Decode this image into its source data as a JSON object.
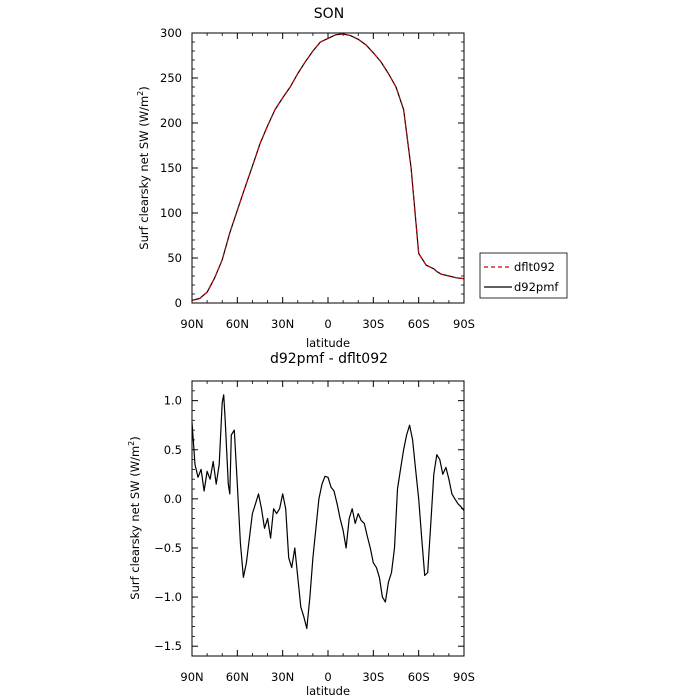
{
  "chart_data": [
    {
      "type": "line",
      "title": "SON",
      "xlabel": "latitude",
      "ylabel": "Surf clearsky net SW (W/m",
      "ylabel_sup": "2",
      "ylabel_tail": ")",
      "xlim": [
        90,
        -90
      ],
      "ylim": [
        0,
        300
      ],
      "xticks": [
        90,
        60,
        30,
        0,
        -30,
        -60,
        -90
      ],
      "xtick_labels": [
        "90N",
        "60N",
        "30N",
        "0",
        "30S",
        "60S",
        "90S"
      ],
      "yticks": [
        0,
        50,
        100,
        150,
        200,
        250,
        300
      ],
      "ytick_labels": [
        "0",
        "50",
        "100",
        "150",
        "200",
        "250",
        "300"
      ],
      "legend": "right",
      "series": [
        {
          "name": "dflt092",
          "color": "#cc0000",
          "dash": "dashed",
          "x": [
            90,
            85,
            80,
            75,
            70,
            65,
            60,
            55,
            50,
            45,
            40,
            35,
            30,
            25,
            20,
            15,
            10,
            5,
            0,
            -5,
            -10,
            -15,
            -20,
            -25,
            -30,
            -35,
            -40,
            -45,
            -50,
            -55,
            -60,
            -65,
            -70,
            -72,
            -75,
            -80,
            -85,
            -90
          ],
          "y": [
            3,
            5,
            12,
            28,
            48,
            78,
            103,
            128,
            152,
            177,
            197,
            215,
            228,
            240,
            255,
            268,
            280,
            290,
            294,
            298,
            299,
            297,
            293,
            287,
            278,
            268,
            255,
            240,
            215,
            150,
            55,
            42,
            38,
            35,
            32,
            30,
            28,
            27
          ]
        },
        {
          "name": "d92pmf",
          "color": "#000000",
          "dash": "solid",
          "x": [
            90,
            85,
            80,
            75,
            70,
            65,
            60,
            55,
            50,
            45,
            40,
            35,
            30,
            25,
            20,
            15,
            10,
            5,
            0,
            -5,
            -10,
            -15,
            -20,
            -25,
            -30,
            -35,
            -40,
            -45,
            -50,
            -55,
            -60,
            -65,
            -70,
            -72,
            -75,
            -80,
            -85,
            -90
          ],
          "y": [
            3,
            5,
            12,
            28,
            48,
            78,
            103,
            128,
            152,
            177,
            197,
            215,
            228,
            240,
            255,
            268,
            280,
            290,
            294,
            298,
            299,
            297,
            293,
            287,
            278,
            268,
            255,
            240,
            215,
            150,
            55,
            42,
            38,
            35,
            32,
            30,
            28,
            27
          ]
        }
      ]
    },
    {
      "type": "line",
      "title": "d92pmf - dflt092",
      "xlabel": "latitude",
      "ylabel": "Surf clearsky net SW (W/m",
      "ylabel_sup": "2",
      "ylabel_tail": ")",
      "xlim": [
        90,
        -90
      ],
      "ylim": [
        -1.6,
        1.2
      ],
      "xticks": [
        90,
        60,
        30,
        0,
        -30,
        -60,
        -90
      ],
      "xtick_labels": [
        "90N",
        "60N",
        "30N",
        "0",
        "30S",
        "60S",
        "90S"
      ],
      "yticks": [
        -1.5,
        -1.0,
        -0.5,
        0.0,
        0.5,
        1.0
      ],
      "ytick_labels": [
        "−1.5",
        "−1.0",
        "−0.5",
        "0.0",
        "0.5",
        "1.0"
      ],
      "series": [
        {
          "name": "",
          "color": "#000000",
          "dash": "solid",
          "x": [
            90,
            88,
            86,
            84,
            82,
            80,
            78,
            76,
            74,
            72,
            70,
            69,
            68,
            66,
            65,
            64,
            62,
            60,
            58,
            56,
            54,
            52,
            50,
            48,
            46,
            44,
            42,
            40,
            38,
            36,
            34,
            32,
            30,
            28,
            26,
            24,
            22,
            20,
            18,
            16,
            14,
            12,
            10,
            8,
            6,
            4,
            2,
            0,
            -2,
            -4,
            -6,
            -8,
            -10,
            -12,
            -14,
            -16,
            -18,
            -20,
            -22,
            -24,
            -26,
            -28,
            -30,
            -32,
            -34,
            -36,
            -38,
            -40,
            -42,
            -44,
            -46,
            -48,
            -50,
            -52,
            -54,
            -56,
            -58,
            -60,
            -62,
            -64,
            -66,
            -68,
            -70,
            -72,
            -74,
            -76,
            -78,
            -80,
            -82,
            -84,
            -86,
            -88,
            -90
          ],
          "y": [
            0.78,
            0.35,
            0.22,
            0.3,
            0.08,
            0.28,
            0.2,
            0.38,
            0.15,
            0.35,
            0.98,
            1.06,
            0.8,
            0.15,
            0.05,
            0.65,
            0.7,
            0.15,
            -0.45,
            -0.8,
            -0.65,
            -0.4,
            -0.15,
            -0.05,
            0.05,
            -0.1,
            -0.3,
            -0.2,
            -0.4,
            -0.1,
            -0.15,
            -0.1,
            0.05,
            -0.1,
            -0.6,
            -0.7,
            -0.5,
            -0.8,
            -1.1,
            -1.2,
            -1.32,
            -1.0,
            -0.6,
            -0.3,
            0.0,
            0.15,
            0.23,
            0.22,
            0.12,
            0.08,
            -0.05,
            -0.2,
            -0.32,
            -0.5,
            -0.2,
            -0.1,
            -0.25,
            -0.15,
            -0.22,
            -0.25,
            -0.38,
            -0.5,
            -0.65,
            -0.7,
            -0.8,
            -1.0,
            -1.05,
            -0.85,
            -0.75,
            -0.5,
            0.1,
            0.3,
            0.5,
            0.65,
            0.75,
            0.6,
            0.3,
            0.0,
            -0.4,
            -0.78,
            -0.75,
            -0.25,
            0.25,
            0.45,
            0.4,
            0.25,
            0.32,
            0.2,
            0.05,
            0.0,
            -0.05,
            -0.08,
            -0.12
          ]
        }
      ]
    }
  ]
}
